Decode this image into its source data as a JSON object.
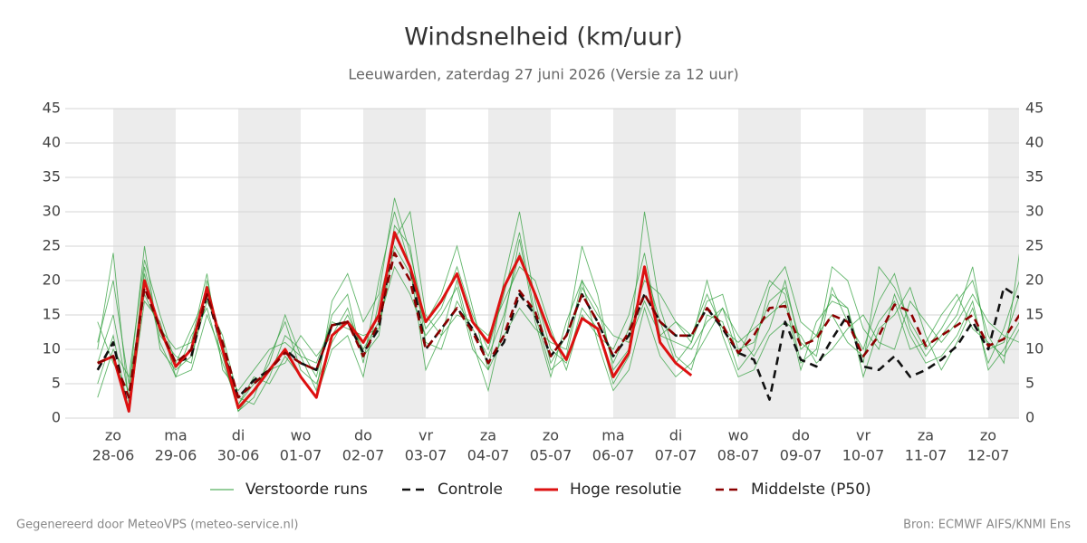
{
  "chart_data": {
    "type": "line",
    "title": "Windsnelheid (km/uur)",
    "subtitle": "Leeuwarden, zaterdag 27 juni 2026 (Versie za 12 uur)",
    "footer_left": "Gegenereerd door MeteoVPS (meteo-service.nl)",
    "footer_right": "Bron: ECMWF AIFS/KNMI Ens",
    "categories": [
      null,
      {
        "day": "zo",
        "date": "28-06"
      },
      null,
      null,
      null,
      {
        "day": "ma",
        "date": "29-06"
      },
      null,
      null,
      null,
      {
        "day": "di",
        "date": "30-06"
      },
      null,
      null,
      null,
      {
        "day": "wo",
        "date": "01-07"
      },
      null,
      null,
      null,
      {
        "day": "do",
        "date": "02-07"
      },
      null,
      null,
      null,
      {
        "day": "vr",
        "date": "03-07"
      },
      null,
      null,
      null,
      {
        "day": "za",
        "date": "04-07"
      },
      null,
      null,
      null,
      {
        "day": "zo",
        "date": "05-07"
      },
      null,
      null,
      null,
      {
        "day": "ma",
        "date": "06-07"
      },
      null,
      null,
      null,
      {
        "day": "di",
        "date": "07-07"
      },
      null,
      null,
      null,
      {
        "day": "wo",
        "date": "08-07"
      },
      null,
      null,
      null,
      {
        "day": "do",
        "date": "09-07"
      },
      null,
      null,
      null,
      {
        "day": "vr",
        "date": "10-07"
      },
      null,
      null,
      null,
      {
        "day": "za",
        "date": "11-07"
      },
      null,
      null,
      null,
      {
        "day": "zo",
        "date": "12-07"
      },
      null,
      null
    ],
    "ylim": [
      0,
      45
    ],
    "yticks": [
      0,
      5,
      10,
      15,
      20,
      25,
      30,
      35,
      40,
      45
    ],
    "grid": true,
    "ensemble": {
      "name": "Verstoorde runs",
      "color": "#2e9e3a",
      "members": [
        [
          10,
          24,
          2,
          22,
          12,
          9,
          8,
          20,
          10,
          1,
          4,
          8,
          15,
          9,
          4,
          17,
          21,
          14,
          18,
          32,
          24,
          14,
          18,
          25,
          16,
          7,
          20,
          30,
          17,
          8,
          12,
          25,
          18,
          7,
          10,
          30,
          16,
          9,
          7,
          15,
          14,
          7,
          10,
          19,
          22,
          14,
          12,
          18,
          16,
          8,
          22,
          19,
          14,
          10,
          13,
          17,
          20,
          12,
          8,
          24
        ],
        [
          5,
          12,
          1,
          17,
          14,
          6,
          12,
          16,
          8,
          2,
          6,
          5,
          9,
          6,
          3,
          10,
          12,
          6,
          17,
          26,
          30,
          15,
          12,
          20,
          11,
          4,
          14,
          26,
          14,
          6,
          14,
          20,
          11,
          4,
          7,
          16,
          9,
          6,
          8,
          12,
          16,
          9,
          14,
          20,
          18,
          8,
          10,
          22,
          20,
          13,
          10,
          18,
          12,
          8,
          9,
          12,
          17,
          7,
          10,
          14
        ],
        [
          14,
          8,
          4,
          25,
          10,
          7,
          9,
          17,
          12,
          3,
          2,
          6,
          12,
          10,
          6,
          15,
          18,
          8,
          20,
          30,
          22,
          7,
          12,
          15,
          14,
          12,
          17,
          22,
          20,
          13,
          7,
          15,
          12,
          10,
          15,
          24,
          12,
          14,
          11,
          20,
          12,
          6,
          7,
          12,
          14,
          12,
          8,
          10,
          13,
          15,
          11,
          10,
          17,
          14,
          11,
          14,
          18,
          14,
          12,
          11
        ],
        [
          8,
          15,
          3,
          21,
          11,
          6,
          7,
          15,
          9,
          1,
          3,
          9,
          14,
          7,
          5,
          11,
          15,
          10,
          14,
          22,
          18,
          12,
          15,
          19,
          10,
          7,
          12,
          16,
          13,
          11,
          10,
          20,
          16,
          8,
          13,
          20,
          18,
          14,
          12,
          18,
          13,
          11,
          13,
          15,
          17,
          7,
          14,
          17,
          16,
          6,
          13,
          15,
          19,
          12,
          7,
          11,
          16,
          8,
          13,
          20
        ],
        [
          11,
          20,
          5,
          18,
          13,
          10,
          11,
          21,
          7,
          4,
          7,
          10,
          11,
          9,
          8,
          14,
          13,
          12,
          13,
          25,
          21,
          13,
          16,
          22,
          15,
          10,
          18,
          27,
          15,
          7,
          9,
          19,
          15,
          12,
          11,
          17,
          12,
          11,
          10,
          14,
          16,
          12,
          9,
          13,
          20,
          10,
          12,
          15,
          11,
          9,
          14,
          17,
          10,
          11,
          15,
          18,
          13,
          11,
          9,
          13
        ],
        [
          3,
          10,
          6,
          23,
          15,
          8,
          13,
          18,
          11,
          2,
          5,
          7,
          8,
          12,
          9,
          12,
          16,
          9,
          12,
          28,
          25,
          11,
          10,
          17,
          13,
          9,
          15,
          24,
          18,
          10,
          8,
          16,
          13,
          5,
          9,
          22,
          14,
          8,
          11,
          17,
          18,
          10,
          11,
          17,
          19,
          11,
          9,
          19,
          14,
          10,
          17,
          21,
          13,
          9,
          12,
          15,
          22,
          10,
          11,
          18
        ]
      ]
    },
    "series": [
      {
        "name": "Controle",
        "color": "#111111",
        "dashed": true,
        "values": [
          7,
          11,
          1,
          20,
          13,
          8,
          9,
          18,
          10,
          3,
          5.5,
          7,
          10,
          8,
          7,
          13.5,
          14,
          9.5,
          13,
          27,
          22,
          10,
          13,
          16,
          13,
          8,
          11,
          18,
          15,
          9,
          12,
          18,
          14,
          9,
          12,
          18,
          14,
          12,
          12,
          16,
          13,
          9.5,
          8.5,
          2.7,
          14,
          8.5,
          7.5,
          11.5,
          15,
          7.5,
          7,
          9,
          6,
          7,
          8.5,
          10.5,
          14,
          10,
          19,
          17.5
        ]
      },
      {
        "name": "Hoge resolutie",
        "color": "#dd1111",
        "dashed": false,
        "values": [
          8,
          9,
          1,
          20,
          13,
          7.5,
          10,
          19,
          10,
          1.5,
          4,
          7,
          10,
          6,
          3,
          12,
          14,
          11,
          15,
          27,
          22,
          14,
          17,
          21,
          14,
          11,
          19,
          23.5,
          18,
          12,
          8.5,
          14.5,
          13,
          6,
          9.5,
          22,
          11,
          8,
          6.2,
          null,
          null,
          null,
          null,
          null,
          null,
          null,
          null,
          null,
          null,
          null,
          null,
          null,
          null,
          null,
          null,
          null,
          null,
          null,
          null,
          null
        ]
      },
      {
        "name": "Middelste (P50)",
        "color": "#8b0000",
        "dashed": true,
        "values": [
          8,
          9,
          3,
          19,
          13,
          8,
          10,
          18,
          11,
          3,
          5,
          7,
          9.5,
          8,
          7,
          13.5,
          14,
          9,
          14,
          24,
          20,
          10,
          13,
          16,
          12.5,
          8,
          12,
          18.5,
          15.5,
          9,
          12,
          18,
          14,
          9,
          12.5,
          18,
          14,
          12,
          12,
          16,
          13.5,
          9.5,
          12,
          16,
          16.3,
          10.5,
          11.5,
          15,
          14,
          9,
          12,
          16.5,
          15.5,
          10.5,
          12,
          13.5,
          15,
          10.5,
          11.5,
          15
        ]
      }
    ]
  }
}
